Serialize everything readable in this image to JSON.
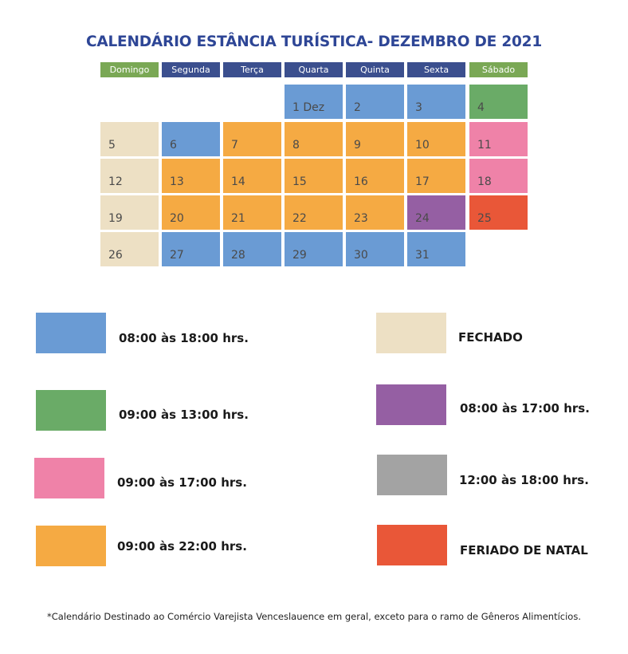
{
  "title": "CALENDÁRIO ESTÂNCIA TURÍSTICA- DEZEMBRO DE 2021",
  "colors": {
    "blue": "#6a9bd4",
    "green": "#6aab67",
    "pink": "#ef82a8",
    "orange": "#f5aa43",
    "beige": "#ede0c4",
    "purple": "#955fa3",
    "gray": "#a3a3a3",
    "red": "#e95738",
    "header_blue": "#3b4f8e",
    "header_green": "#7aa855"
  },
  "weekdays": [
    {
      "label": "Domingo",
      "color": "header_green"
    },
    {
      "label": "Segunda",
      "color": "header_blue"
    },
    {
      "label": "Terça",
      "color": "header_blue"
    },
    {
      "label": "Quarta",
      "color": "header_blue"
    },
    {
      "label": "Quinta",
      "color": "header_blue"
    },
    {
      "label": "Sexta",
      "color": "header_blue"
    },
    {
      "label": "Sábado",
      "color": "header_green"
    }
  ],
  "days": [
    {
      "label": "1 Dez",
      "color": "blue"
    },
    {
      "label": "2",
      "color": "blue"
    },
    {
      "label": "3",
      "color": "blue"
    },
    {
      "label": "4",
      "color": "green"
    },
    {
      "label": "5",
      "color": "beige"
    },
    {
      "label": "6",
      "color": "blue"
    },
    {
      "label": "7",
      "color": "orange"
    },
    {
      "label": "8",
      "color": "orange"
    },
    {
      "label": "9",
      "color": "orange"
    },
    {
      "label": "10",
      "color": "orange"
    },
    {
      "label": "11",
      "color": "pink"
    },
    {
      "label": "12",
      "color": "beige"
    },
    {
      "label": "13",
      "color": "orange"
    },
    {
      "label": "14",
      "color": "orange"
    },
    {
      "label": "15",
      "color": "orange"
    },
    {
      "label": "16",
      "color": "orange"
    },
    {
      "label": "17",
      "color": "orange"
    },
    {
      "label": "18",
      "color": "pink"
    },
    {
      "label": "19",
      "color": "beige"
    },
    {
      "label": "20",
      "color": "orange"
    },
    {
      "label": "21",
      "color": "orange"
    },
    {
      "label": "22",
      "color": "orange"
    },
    {
      "label": "23",
      "color": "orange"
    },
    {
      "label": "24",
      "color": "purple"
    },
    {
      "label": "25",
      "color": "red"
    },
    {
      "label": "26",
      "color": "beige"
    },
    {
      "label": "27",
      "color": "blue"
    },
    {
      "label": "28",
      "color": "blue"
    },
    {
      "label": "29",
      "color": "blue"
    },
    {
      "label": "30",
      "color": "blue"
    },
    {
      "label": "31",
      "color": "blue"
    }
  ],
  "legend": [
    {
      "label": "08:00 às 18:00 hrs.",
      "color": "blue"
    },
    {
      "label": "09:00 às 13:00 hrs.",
      "color": "green"
    },
    {
      "label": "09:00 às 17:00 hrs.",
      "color": "pink"
    },
    {
      "label": "09:00 às 22:00 hrs.",
      "color": "orange"
    },
    {
      "label": "FECHADO",
      "color": "beige"
    },
    {
      "label": "08:00 às 17:00 hrs.",
      "color": "purple"
    },
    {
      "label": "12:00 às 18:00 hrs.",
      "color": "gray"
    },
    {
      "label": "FERIADO DE NATAL",
      "color": "red"
    }
  ],
  "footnote": "*Calendário Destinado ao Comércio Varejista Venceslauence em geral, exceto para o ramo de Gêneros Alimentícios."
}
